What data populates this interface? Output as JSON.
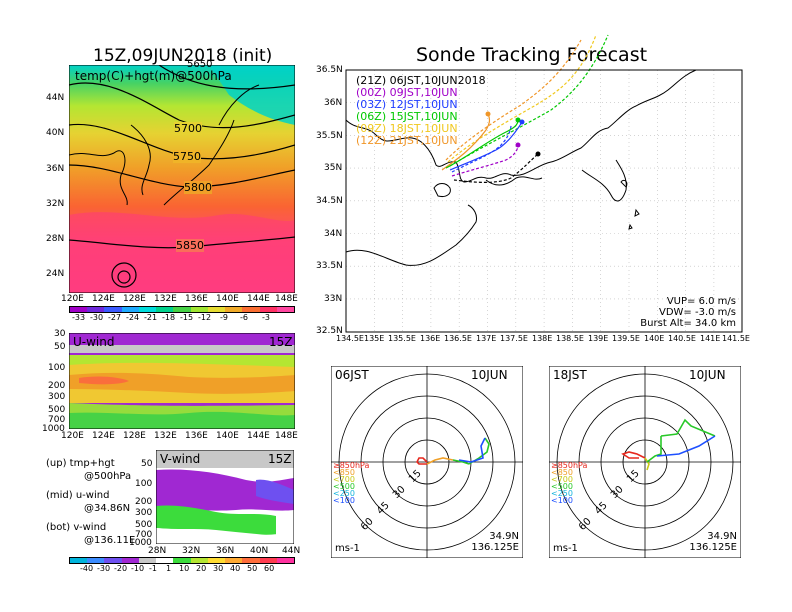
{
  "left_title": "15Z,09JUN2018 (init)",
  "right_title": "Sonde Tracking Forecast",
  "top_map": {
    "label": "temp(C)+hgt(m)@500hPa",
    "contours": [
      "5700",
      "5750",
      "5800",
      "5850"
    ],
    "partial_label": "5650",
    "lat_ticks": [
      "44N",
      "40N",
      "36N",
      "32N",
      "28N",
      "24N"
    ],
    "lon_ticks": [
      "120E",
      "124E",
      "128E",
      "132E",
      "136E",
      "140E",
      "144E",
      "148E"
    ],
    "colorbar_labels": [
      "-33",
      "-30",
      "-27",
      "-24",
      "-21",
      "-18",
      "-15",
      "-12",
      "-9",
      "-6",
      "-3"
    ],
    "colorbar_colors": [
      "#a000c8",
      "#6e28dc",
      "#3c5aff",
      "#1eaaff",
      "#00dcdc",
      "#00d28c",
      "#46d246",
      "#a0e632",
      "#e6dc32",
      "#f0aa28",
      "#fa6e32",
      "#ff3264",
      "#ff46a0"
    ]
  },
  "u_panel": {
    "label": "U-wind",
    "time": "15Z",
    "p_ticks": [
      "30",
      "50",
      "100",
      "200",
      "300",
      "500",
      "700",
      "1000"
    ],
    "lon_ticks": [
      "120E",
      "124E",
      "128E",
      "132E",
      "136E",
      "140E",
      "144E",
      "148E"
    ]
  },
  "v_panel": {
    "label": "V-wind",
    "time": "15Z",
    "p_ticks": [
      "50",
      "100",
      "200",
      "300",
      "500",
      "700",
      "1000"
    ],
    "lat_ticks": [
      "28N",
      "32N",
      "36N",
      "40N",
      "44N"
    ],
    "colorbar_labels": [
      "-40",
      "-30",
      "-20",
      "-10",
      "-1",
      "1",
      "10",
      "20",
      "30",
      "40",
      "50",
      "60"
    ],
    "colorbar_colors": [
      "#00b4dc",
      "#3c8cff",
      "#6e50f0",
      "#a028d2",
      "#c8c8c8",
      "#ffffff",
      "#3cdc3c",
      "#b4e632",
      "#ffdc32",
      "#ffaa32",
      "#ff6e3c",
      "#ff3c50",
      "#ff32a0"
    ]
  },
  "notes": [
    {
      "title": "(up) tmp+hgt",
      "sub": "@500hPa"
    },
    {
      "title": "(mid) u-wind",
      "sub": "@34.86N"
    },
    {
      "title": "(bot) v-wind",
      "sub": "@136.11E"
    }
  ],
  "track_map": {
    "lat_ticks": [
      "36.5N",
      "36N",
      "35.5N",
      "35N",
      "34.5N",
      "34N",
      "33.5N",
      "33N",
      "32.5N"
    ],
    "lon_ticks": [
      "134.5E",
      "135E",
      "135.5E",
      "136E",
      "136.5E",
      "137E",
      "137.5E",
      "138E",
      "138.5E",
      "139E",
      "139.5E",
      "140E",
      "140.5E",
      "141E",
      "141.5E"
    ],
    "legend": [
      {
        "code": "(21Z)",
        "time": "06JST,10JUN2018",
        "color": "#000000"
      },
      {
        "code": "(00Z)",
        "time": "09JST,10JUN",
        "color": "#a000c8"
      },
      {
        "code": "(03Z)",
        "time": "12JST,10JUN",
        "color": "#1e3cff"
      },
      {
        "code": "(06Z)",
        "time": "15JST,10JUN",
        "color": "#00c800"
      },
      {
        "code": "(09Z)",
        "time": "18JST,10JUN",
        "color": "#f0c81e"
      },
      {
        "code": "(12Z)",
        "time": "21JST,10JUN",
        "color": "#f09628"
      }
    ],
    "params": [
      "VUP= 6.0 m/s",
      "VDW= -3.0 m/s",
      "Burst Alt= 34.0 km"
    ]
  },
  "hodographs": [
    {
      "time": "06JST",
      "date": "10JUN",
      "lat": "34.9N",
      "lon": "136.125E",
      "unit": "ms-1",
      "rings": [
        "15",
        "30",
        "45",
        "60"
      ],
      "levels": [
        {
          "label": "≥850hPa",
          "color": "#e6281e"
        },
        {
          "label": "<850",
          "color": "#f0a028"
        },
        {
          "label": "<700",
          "color": "#c8c814"
        },
        {
          "label": "<500",
          "color": "#28c828"
        },
        {
          "label": "<250",
          "color": "#14b4dc"
        },
        {
          "label": "<100",
          "color": "#1e50ff"
        }
      ]
    },
    {
      "time": "18JST",
      "date": "10JUN",
      "lat": "34.9N",
      "lon": "136.125E",
      "unit": "ms-1",
      "rings": [
        "15",
        "30",
        "45",
        "60"
      ],
      "levels": [
        {
          "label": "≥850hPa",
          "color": "#e6281e"
        },
        {
          "label": "<850",
          "color": "#f0a028"
        },
        {
          "label": "<700",
          "color": "#c8c814"
        },
        {
          "label": "<500",
          "color": "#28c828"
        },
        {
          "label": "<250",
          "color": "#14b4dc"
        },
        {
          "label": "<100",
          "color": "#1e50ff"
        }
      ]
    }
  ],
  "chart_data": [
    {
      "type": "heatmap",
      "title": "temp(C)+hgt(m)@500hPa",
      "xlim": [
        "120E",
        "149E"
      ],
      "ylim": [
        "22N",
        "48N"
      ],
      "contour_levels": [
        5650,
        5700,
        5750,
        5800,
        5850
      ]
    },
    {
      "type": "heatmap",
      "title": "U-wind",
      "xlim": [
        "120E",
        "149E"
      ],
      "ylim": [
        1000,
        30
      ]
    },
    {
      "type": "heatmap",
      "title": "V-wind",
      "xlim": [
        "28N",
        "44N"
      ],
      "ylim": [
        1000,
        30
      ]
    }
  ]
}
